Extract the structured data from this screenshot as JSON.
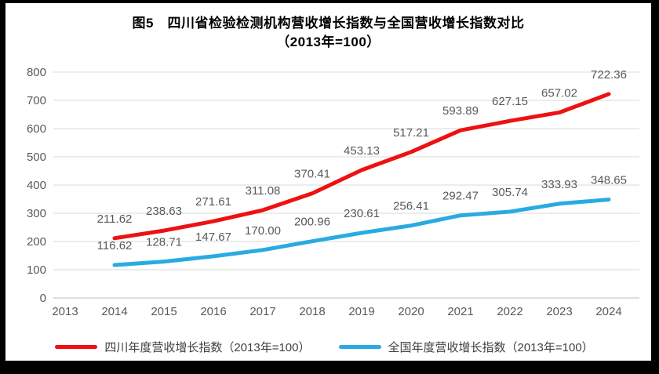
{
  "title": {
    "line1": "图5　四川省检验检测机构营收增长指数与全国营收增长指数对比",
    "line2": "（2013年=100）"
  },
  "chart_data": {
    "type": "line",
    "title": "图5 四川省检验检测机构营收增长指数与全国营收增长指数对比（2013年=100）",
    "categories": [
      "2013",
      "2014",
      "2015",
      "2016",
      "2017",
      "2018",
      "2019",
      "2020",
      "2021",
      "2022",
      "2023",
      "2024"
    ],
    "series": [
      {
        "name": "四川年度营收增长指数（2013年=100）",
        "color": "#ee1111",
        "values": [
          null,
          211.62,
          238.63,
          271.61,
          311.08,
          370.41,
          453.13,
          517.21,
          593.89,
          627.15,
          657.02,
          722.36
        ]
      },
      {
        "name": "全国年度营收增长指数（2013年=100）",
        "color": "#29abe2",
        "values": [
          null,
          116.62,
          128.71,
          147.67,
          170.0,
          200.96,
          230.61,
          256.41,
          292.47,
          305.74,
          333.93,
          348.65
        ]
      }
    ],
    "ylim": [
      0,
      800
    ],
    "ytick_step": 100,
    "grid": true,
    "legend_position": "bottom",
    "value_label_decimals": 2,
    "style": {
      "grid_color": "#d9d9d9",
      "axis_line_color": "#bfbfbf",
      "tick_label_color": "#595959",
      "data_label_color": "#595959",
      "legend_text_color": "#3f3f3f",
      "title_color": "#000000",
      "background_color": "#ffffff",
      "frame_color": "#000000"
    }
  }
}
